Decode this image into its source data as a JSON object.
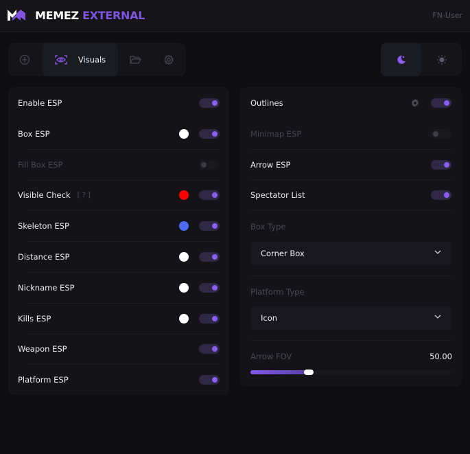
{
  "header": {
    "brand_a": "MEMEZ",
    "brand_b": "EXTERNAL",
    "user": "FN-User"
  },
  "tabs": [
    {
      "icon": "crosshair-icon"
    },
    {
      "icon": "eye-scan-icon",
      "label": "Visuals",
      "active": true
    },
    {
      "icon": "folder-icon"
    },
    {
      "icon": "gear-icon"
    }
  ],
  "theme": {
    "active": "dark",
    "icons": [
      "moon-icon",
      "sun-icon"
    ]
  },
  "left": [
    {
      "label": "Enable ESP",
      "on": true
    },
    {
      "label": "Box ESP",
      "on": true,
      "color": "#ffffff"
    },
    {
      "label": "Fill Box ESP",
      "on": false,
      "disabled": true
    },
    {
      "label": "Visible Check",
      "help": "[ ? ]",
      "on": true,
      "color": "#ff0000"
    },
    {
      "label": "Skeleton ESP",
      "on": true,
      "color": "#4f6bf0"
    },
    {
      "label": "Distance ESP",
      "on": true,
      "color": "#ffffff"
    },
    {
      "label": "Nickname ESP",
      "on": true,
      "color": "#ffffff"
    },
    {
      "label": "Kills ESP",
      "on": true,
      "color": "#ffffff"
    },
    {
      "label": "Weapon ESP",
      "on": true
    },
    {
      "label": "Platform ESP",
      "on": true
    }
  ],
  "right": {
    "outlines": {
      "label": "Outlines",
      "on": true
    },
    "minimap": {
      "label": "Minimap ESP",
      "on": false
    },
    "arrow": {
      "label": "Arrow ESP",
      "on": true
    },
    "spectator": {
      "label": "Spectator List",
      "on": true
    },
    "box_type": {
      "label": "Box Type",
      "value": "Corner Box"
    },
    "platform_type": {
      "label": "Platform Type",
      "value": "Icon"
    },
    "arrow_fov": {
      "label": "Arrow FOV",
      "value": "50.00",
      "fill_percent": 29
    }
  },
  "colors": {
    "accent": "#8a5cf0"
  }
}
